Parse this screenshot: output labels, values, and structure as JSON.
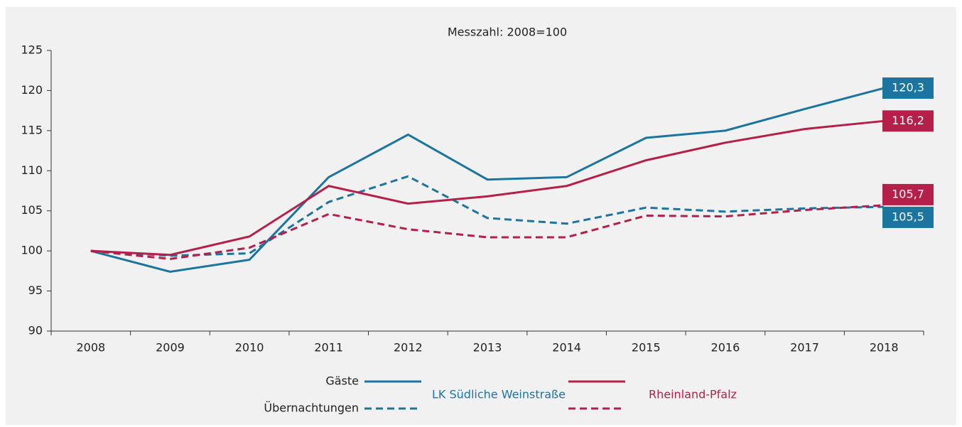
{
  "chart_data": {
    "type": "line",
    "title": "Messzahl: 2008=100",
    "categories": [
      "2008",
      "2009",
      "2010",
      "2011",
      "2012",
      "2013",
      "2014",
      "2015",
      "2016",
      "2017",
      "2018"
    ],
    "ylim": [
      90,
      125
    ],
    "yticks": [
      90,
      95,
      100,
      105,
      110,
      115,
      120,
      125
    ],
    "groups": [
      {
        "name": "LK Südliche Weinstraße",
        "color": "#1b75a0",
        "series": [
          {
            "name": "Gäste",
            "dashed": false,
            "values": [
              100,
              97.4,
              98.9,
              109.2,
              114.5,
              108.9,
              109.2,
              114.1,
              115.0,
              117.7,
              120.3
            ],
            "value_labels": [
              null,
              null,
              null,
              null,
              null,
              null,
              null,
              null,
              null,
              null,
              "120,3"
            ]
          },
          {
            "name": "Übernachtungen",
            "dashed": true,
            "values": [
              100,
              99.4,
              99.7,
              106.1,
              109.3,
              104.1,
              103.4,
              105.4,
              104.9,
              105.3,
              105.5
            ],
            "value_labels": [
              null,
              null,
              null,
              null,
              null,
              null,
              null,
              null,
              null,
              null,
              "105,5"
            ]
          }
        ]
      },
      {
        "name": "Rheinland-Pfalz",
        "color": "#b5204a",
        "series": [
          {
            "name": "Gäste",
            "dashed": false,
            "values": [
              100,
              99.5,
              101.8,
              108.1,
              105.9,
              106.8,
              108.1,
              111.3,
              113.5,
              115.2,
              116.2
            ],
            "value_labels": [
              null,
              null,
              null,
              null,
              null,
              null,
              null,
              null,
              null,
              null,
              "116,2"
            ]
          },
          {
            "name": "Übernachtungen",
            "dashed": true,
            "values": [
              100,
              99.0,
              100.4,
              104.6,
              102.7,
              101.7,
              101.7,
              104.4,
              104.3,
              105.1,
              105.7
            ],
            "value_labels": [
              null,
              null,
              null,
              null,
              null,
              null,
              null,
              null,
              null,
              null,
              "105,7"
            ]
          }
        ]
      }
    ]
  }
}
